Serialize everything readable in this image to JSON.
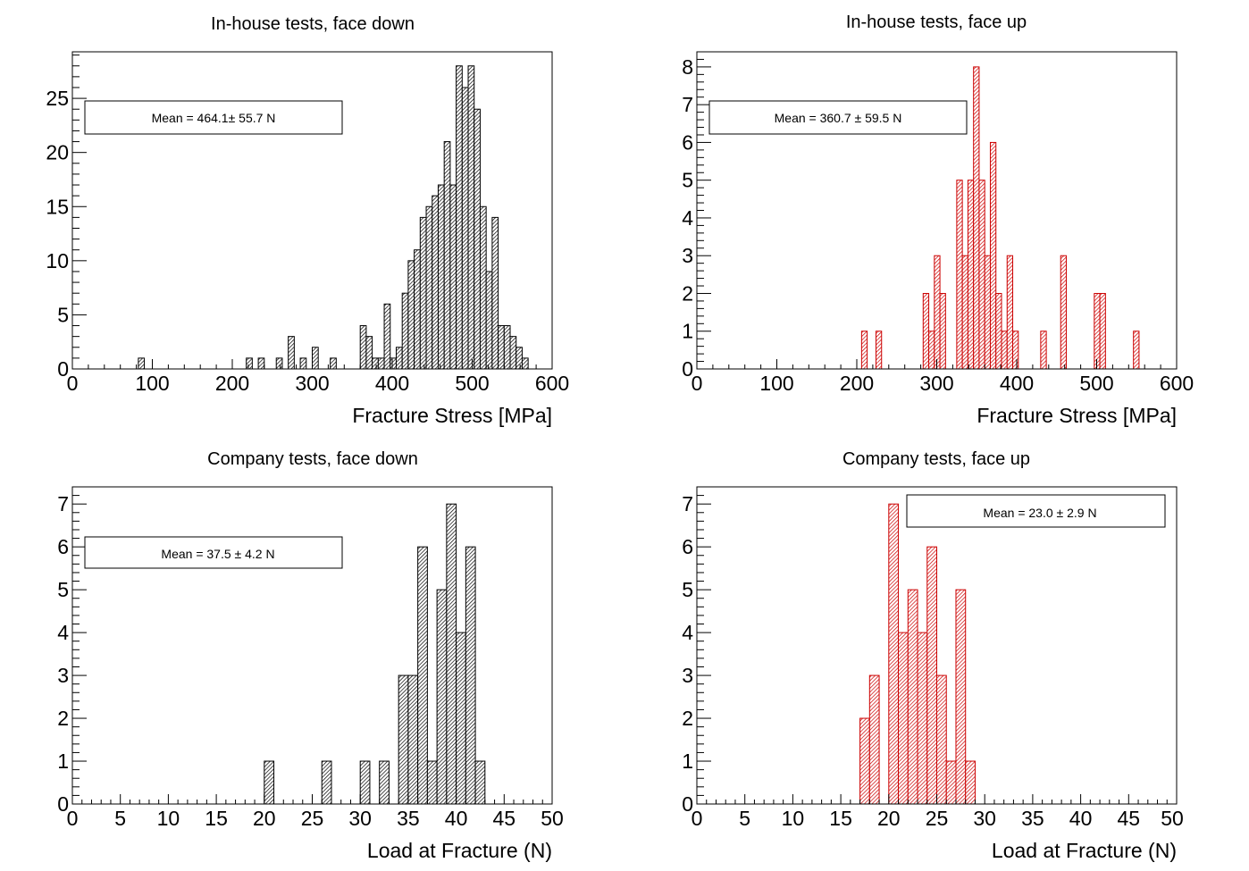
{
  "colors": {
    "black_hist": "#000000",
    "red_hist": "#cc0000",
    "frame": "#000000"
  },
  "chart_data": [
    {
      "type": "bar",
      "title": "In-house tests, face down",
      "xlabel": "Fracture Stress [MPa]",
      "ylabel": "",
      "xlim": [
        0,
        600
      ],
      "ylim": [
        0,
        29.3
      ],
      "xticks": [
        "0",
        "100",
        "200",
        "300",
        "400",
        "500",
        "600"
      ],
      "xtick_values": [
        0,
        100,
        200,
        300,
        400,
        500,
        600
      ],
      "yticks": [
        "0",
        "5",
        "10",
        "15",
        "20",
        "25"
      ],
      "ytick_values": [
        0,
        5,
        10,
        15,
        20,
        25
      ],
      "bin_width": 7.5,
      "bin_starts": [
        82.5,
        217.5,
        232.5,
        255,
        270,
        285,
        300,
        322.5,
        360,
        367.5,
        375,
        382.5,
        390,
        397.5,
        405,
        412.5,
        420,
        427.5,
        435,
        442.5,
        450,
        457.5,
        465,
        472.5,
        480,
        487.5,
        495,
        502.5,
        510,
        517.5,
        525,
        532.5,
        540,
        547.5,
        555,
        562.5
      ],
      "values": [
        1,
        1,
        1,
        1,
        3,
        1,
        2,
        1,
        4,
        3,
        1,
        1,
        6,
        1,
        2,
        7,
        10,
        11,
        14,
        15,
        16,
        17,
        21,
        17,
        28,
        26,
        28,
        24,
        15,
        9,
        14,
        4,
        4,
        3,
        2,
        1
      ],
      "legend": "Mean = 464.1± 55.7 N",
      "legend_position": "top-left",
      "color": "#000000"
    },
    {
      "type": "bar",
      "title": "In-house tests, face up",
      "xlabel": "Fracture Stress [MPa]",
      "ylabel": "",
      "xlim": [
        0,
        600
      ],
      "ylim": [
        0,
        8.4
      ],
      "xticks": [
        "0",
        "100",
        "200",
        "300",
        "400",
        "500",
        "600"
      ],
      "xtick_values": [
        0,
        100,
        200,
        300,
        400,
        500,
        600
      ],
      "yticks": [
        "0",
        "1",
        "2",
        "3",
        "4",
        "5",
        "6",
        "7",
        "8"
      ],
      "ytick_values": [
        0,
        1,
        2,
        3,
        4,
        5,
        6,
        7,
        8
      ],
      "bin_width": 7,
      "bin_starts": [
        206,
        224,
        283,
        290,
        297,
        304,
        325,
        332,
        339,
        346,
        353,
        360,
        367,
        374,
        381,
        388,
        395,
        430,
        455,
        497,
        504,
        546
      ],
      "values": [
        1,
        1,
        2,
        1,
        3,
        2,
        5,
        3,
        5,
        8,
        5,
        3,
        6,
        2,
        1,
        3,
        1,
        1,
        3,
        2,
        2,
        1
      ],
      "legend": "Mean = 360.7 ± 59.5 N",
      "legend_position": "top-left",
      "color": "#cc0000"
    },
    {
      "type": "bar",
      "title": "Company tests, face down",
      "xlabel": "Load at Fracture (N)",
      "ylabel": "",
      "xlim": [
        0,
        50
      ],
      "ylim": [
        0,
        7.4
      ],
      "xticks": [
        "0",
        "5",
        "10",
        "15",
        "20",
        "25",
        "30",
        "35",
        "40",
        "45",
        "50"
      ],
      "xtick_values": [
        0,
        5,
        10,
        15,
        20,
        25,
        30,
        35,
        40,
        45,
        50
      ],
      "yticks": [
        "0",
        "1",
        "2",
        "3",
        "4",
        "5",
        "6",
        "7"
      ],
      "ytick_values": [
        0,
        1,
        2,
        3,
        4,
        5,
        6,
        7
      ],
      "bin_width": 1,
      "bin_starts": [
        20,
        26,
        30,
        32,
        34,
        35,
        36,
        37,
        38,
        39,
        40,
        41,
        42
      ],
      "values": [
        1,
        1,
        1,
        1,
        3,
        3,
        6,
        1,
        5,
        7,
        4,
        6,
        1
      ],
      "legend": "Mean = 37.5 ± 4.2 N",
      "legend_position": "top-left",
      "color": "#000000"
    },
    {
      "type": "bar",
      "title": "Company tests, face up",
      "xlabel": "Load at Fracture (N)",
      "ylabel": "",
      "xlim": [
        0,
        50
      ],
      "ylim": [
        0,
        7.4
      ],
      "xticks": [
        "0",
        "5",
        "10",
        "15",
        "20",
        "25",
        "30",
        "35",
        "40",
        "45",
        "50"
      ],
      "xtick_values": [
        0,
        5,
        10,
        15,
        20,
        25,
        30,
        35,
        40,
        45,
        50
      ],
      "yticks": [
        "0",
        "1",
        "2",
        "3",
        "4",
        "5",
        "6",
        "7"
      ],
      "ytick_values": [
        0,
        1,
        2,
        3,
        4,
        5,
        6,
        7
      ],
      "bin_width": 1,
      "bin_starts": [
        17,
        18,
        20,
        21,
        22,
        23,
        24,
        25,
        26,
        27,
        28
      ],
      "values": [
        2,
        3,
        7,
        4,
        5,
        4,
        6,
        3,
        1,
        5,
        1
      ],
      "legend": "Mean = 23.0 ± 2.9 N",
      "legend_position": "top-center",
      "color": "#cc0000"
    }
  ]
}
